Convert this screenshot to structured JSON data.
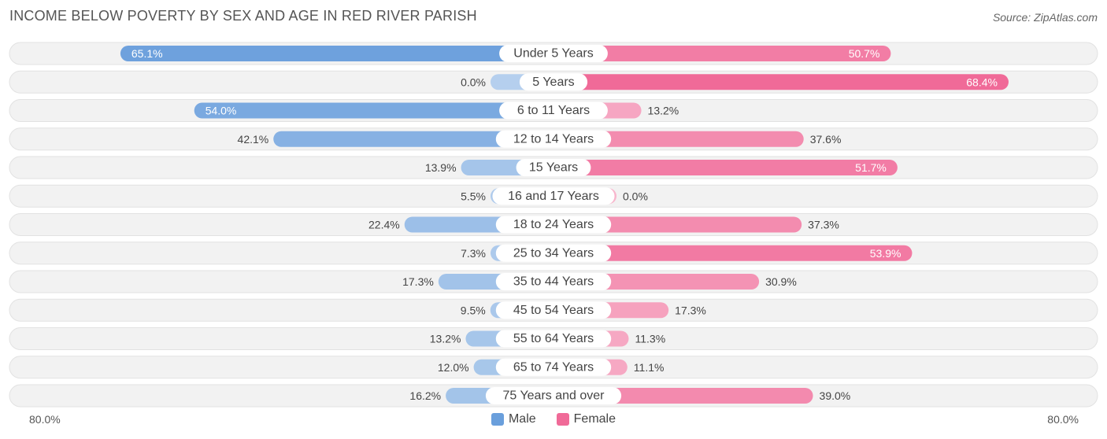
{
  "chart_data": {
    "type": "bar",
    "orientation": "horizontal-diverging",
    "title": "INCOME BELOW POVERTY BY SEX AND AGE IN RED RIVER PARISH",
    "source": "Source: ZipAtlas.com",
    "categories": [
      "Under 5 Years",
      "5 Years",
      "6 to 11 Years",
      "12 to 14 Years",
      "15 Years",
      "16 and 17 Years",
      "18 to 24 Years",
      "25 to 34 Years",
      "35 to 44 Years",
      "45 to 54 Years",
      "55 to 64 Years",
      "65 to 74 Years",
      "75 Years and over"
    ],
    "series": [
      {
        "name": "Male",
        "color": "#6a9fdc",
        "values": [
          65.1,
          0.0,
          54.0,
          42.1,
          13.9,
          5.5,
          22.4,
          7.3,
          17.3,
          9.5,
          13.2,
          12.0,
          16.2
        ],
        "labels": [
          "65.1%",
          "0.0%",
          "54.0%",
          "42.1%",
          "13.9%",
          "5.5%",
          "22.4%",
          "7.3%",
          "17.3%",
          "9.5%",
          "13.2%",
          "12.0%",
          "16.2%"
        ]
      },
      {
        "name": "Female",
        "color": "#f06a98",
        "values": [
          50.7,
          68.4,
          13.2,
          37.6,
          51.7,
          0.0,
          37.3,
          53.9,
          30.9,
          17.3,
          11.3,
          11.1,
          39.0
        ],
        "labels": [
          "50.7%",
          "68.4%",
          "13.2%",
          "37.6%",
          "51.7%",
          "0.0%",
          "37.3%",
          "53.9%",
          "30.9%",
          "17.3%",
          "11.3%",
          "11.1%",
          "39.0%"
        ]
      }
    ],
    "xlim": [
      -80,
      80
    ],
    "axis_min_label": "80.0%",
    "axis_max_label": "80.0%",
    "legend": [
      "Male",
      "Female"
    ],
    "legend_position": "bottom-center"
  }
}
